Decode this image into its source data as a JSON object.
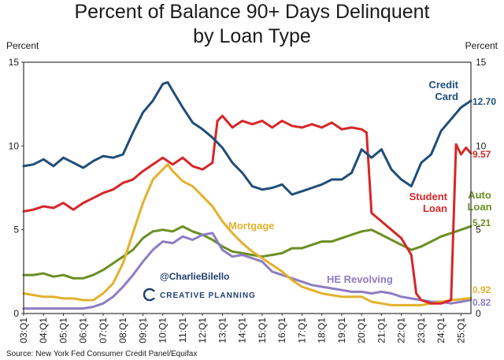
{
  "colors": {
    "credit_card": "#1f4e79",
    "student_loan": "#d62728",
    "auto_loan": "#6b8e23",
    "mortgage": "#e3b12c",
    "he_revolving": "#8e7cc3",
    "frame": "#333333"
  },
  "watermark": {
    "handle": "@CharlieBilello",
    "brand": "CREATIVE PLANNING"
  },
  "source": "Source: New York Fed Consumer Credit Panel/Equifax",
  "chart_data": {
    "type": "line",
    "title": "Percent of Balance 90+ Days Delinquent",
    "subtitle": "by Loan Type",
    "ylabel_left": "Percent",
    "ylabel_right": "Percent",
    "ylim": [
      0,
      15
    ],
    "yticks": [
      0,
      5,
      10,
      15
    ],
    "xlim": [
      2003.0,
      2025.5
    ],
    "xticks": [
      "03:Q1",
      "04:Q1",
      "05:Q1",
      "06:Q1",
      "07:Q1",
      "08:Q1",
      "09:Q1",
      "10:Q1",
      "11:Q1",
      "12:Q1",
      "13:Q1",
      "14:Q1",
      "15:Q1",
      "16:Q1",
      "17:Q1",
      "18:Q1",
      "19:Q1",
      "20:Q1",
      "21:Q1",
      "22:Q1",
      "23:Q1",
      "24:Q1",
      "25:Q1"
    ],
    "series": [
      {
        "key": "credit_card",
        "name": "Credit Card",
        "name_lines": [
          "Credit",
          "Card"
        ],
        "end_value": "12.70",
        "points": [
          [
            2003.0,
            8.8
          ],
          [
            2003.5,
            8.9
          ],
          [
            2004.0,
            9.2
          ],
          [
            2004.5,
            8.8
          ],
          [
            2005.0,
            9.3
          ],
          [
            2005.5,
            9.0
          ],
          [
            2006.0,
            8.7
          ],
          [
            2006.5,
            9.1
          ],
          [
            2007.0,
            9.4
          ],
          [
            2007.5,
            9.3
          ],
          [
            2008.0,
            9.5
          ],
          [
            2008.5,
            10.8
          ],
          [
            2009.0,
            12.0
          ],
          [
            2009.5,
            12.7
          ],
          [
            2010.0,
            13.7
          ],
          [
            2010.25,
            13.8
          ],
          [
            2010.5,
            13.3
          ],
          [
            2011.0,
            12.3
          ],
          [
            2011.5,
            11.4
          ],
          [
            2012.0,
            11.0
          ],
          [
            2012.5,
            10.5
          ],
          [
            2013.0,
            9.9
          ],
          [
            2013.5,
            9.0
          ],
          [
            2014.0,
            8.4
          ],
          [
            2014.5,
            7.6
          ],
          [
            2015.0,
            7.4
          ],
          [
            2015.5,
            7.5
          ],
          [
            2016.0,
            7.7
          ],
          [
            2016.5,
            7.1
          ],
          [
            2017.0,
            7.3
          ],
          [
            2017.5,
            7.5
          ],
          [
            2018.0,
            7.7
          ],
          [
            2018.5,
            8.0
          ],
          [
            2019.0,
            8.0
          ],
          [
            2019.5,
            8.4
          ],
          [
            2020.0,
            9.8
          ],
          [
            2020.5,
            9.3
          ],
          [
            2021.0,
            9.8
          ],
          [
            2021.5,
            8.6
          ],
          [
            2022.0,
            8.0
          ],
          [
            2022.5,
            7.6
          ],
          [
            2023.0,
            9.0
          ],
          [
            2023.5,
            9.5
          ],
          [
            2024.0,
            10.9
          ],
          [
            2024.5,
            11.6
          ],
          [
            2025.0,
            12.3
          ],
          [
            2025.5,
            12.7
          ]
        ]
      },
      {
        "key": "student_loan",
        "name": "Student Loan",
        "name_lines": [
          "Student",
          "Loan"
        ],
        "end_value": "9.57",
        "points": [
          [
            2003.0,
            6.1
          ],
          [
            2003.5,
            6.2
          ],
          [
            2004.0,
            6.4
          ],
          [
            2004.5,
            6.3
          ],
          [
            2005.0,
            6.6
          ],
          [
            2005.5,
            6.2
          ],
          [
            2006.0,
            6.6
          ],
          [
            2006.5,
            6.9
          ],
          [
            2007.0,
            7.2
          ],
          [
            2007.5,
            7.4
          ],
          [
            2008.0,
            7.8
          ],
          [
            2008.5,
            8.0
          ],
          [
            2009.0,
            8.5
          ],
          [
            2009.5,
            8.9
          ],
          [
            2010.0,
            9.3
          ],
          [
            2010.5,
            8.9
          ],
          [
            2011.0,
            9.3
          ],
          [
            2011.5,
            8.8
          ],
          [
            2012.0,
            8.6
          ],
          [
            2012.5,
            9.0
          ],
          [
            2012.75,
            11.5
          ],
          [
            2013.0,
            11.8
          ],
          [
            2013.5,
            11.1
          ],
          [
            2014.0,
            11.5
          ],
          [
            2014.5,
            11.3
          ],
          [
            2015.0,
            11.5
          ],
          [
            2015.5,
            11.1
          ],
          [
            2016.0,
            11.5
          ],
          [
            2016.5,
            11.2
          ],
          [
            2017.0,
            11.1
          ],
          [
            2017.5,
            11.3
          ],
          [
            2018.0,
            11.1
          ],
          [
            2018.5,
            11.4
          ],
          [
            2019.0,
            11.0
          ],
          [
            2019.5,
            11.1
          ],
          [
            2020.0,
            11.0
          ],
          [
            2020.25,
            10.8
          ],
          [
            2020.5,
            6.0
          ],
          [
            2021.0,
            5.5
          ],
          [
            2021.5,
            5.0
          ],
          [
            2022.0,
            4.5
          ],
          [
            2022.5,
            3.5
          ],
          [
            2022.75,
            1.2
          ],
          [
            2023.0,
            0.8
          ],
          [
            2023.5,
            0.6
          ],
          [
            2024.0,
            0.6
          ],
          [
            2024.5,
            0.8
          ],
          [
            2024.75,
            10.1
          ],
          [
            2025.0,
            9.5
          ],
          [
            2025.25,
            9.9
          ],
          [
            2025.5,
            9.57
          ]
        ]
      },
      {
        "key": "auto_loan",
        "name": "Auto Loan",
        "name_lines": [
          "Auto",
          "Loan"
        ],
        "end_value": "5.21",
        "points": [
          [
            2003.0,
            2.3
          ],
          [
            2003.5,
            2.3
          ],
          [
            2004.0,
            2.4
          ],
          [
            2004.5,
            2.2
          ],
          [
            2005.0,
            2.3
          ],
          [
            2005.5,
            2.1
          ],
          [
            2006.0,
            2.1
          ],
          [
            2006.5,
            2.3
          ],
          [
            2007.0,
            2.6
          ],
          [
            2007.5,
            3.0
          ],
          [
            2008.0,
            3.4
          ],
          [
            2008.5,
            3.8
          ],
          [
            2009.0,
            4.5
          ],
          [
            2009.5,
            4.9
          ],
          [
            2010.0,
            5.0
          ],
          [
            2010.5,
            4.9
          ],
          [
            2011.0,
            5.2
          ],
          [
            2011.5,
            4.9
          ],
          [
            2012.0,
            4.7
          ],
          [
            2012.5,
            4.4
          ],
          [
            2013.0,
            4.0
          ],
          [
            2013.5,
            3.7
          ],
          [
            2014.0,
            3.6
          ],
          [
            2014.5,
            3.5
          ],
          [
            2015.0,
            3.4
          ],
          [
            2015.5,
            3.5
          ],
          [
            2016.0,
            3.6
          ],
          [
            2016.5,
            3.9
          ],
          [
            2017.0,
            3.9
          ],
          [
            2017.5,
            4.1
          ],
          [
            2018.0,
            4.3
          ],
          [
            2018.5,
            4.3
          ],
          [
            2019.0,
            4.5
          ],
          [
            2019.5,
            4.7
          ],
          [
            2020.0,
            4.9
          ],
          [
            2020.5,
            5.0
          ],
          [
            2021.0,
            4.7
          ],
          [
            2021.5,
            4.4
          ],
          [
            2022.0,
            4.1
          ],
          [
            2022.5,
            3.8
          ],
          [
            2023.0,
            4.0
          ],
          [
            2023.5,
            4.3
          ],
          [
            2024.0,
            4.6
          ],
          [
            2024.5,
            4.8
          ],
          [
            2025.0,
            5.0
          ],
          [
            2025.5,
            5.21
          ]
        ]
      },
      {
        "key": "mortgage",
        "name": "Mortgage",
        "name_lines": [
          "Mortgage"
        ],
        "end_value": "0.92",
        "points": [
          [
            2003.0,
            1.2
          ],
          [
            2003.5,
            1.1
          ],
          [
            2004.0,
            1.0
          ],
          [
            2004.5,
            1.0
          ],
          [
            2005.0,
            0.9
          ],
          [
            2005.5,
            0.9
          ],
          [
            2006.0,
            0.8
          ],
          [
            2006.5,
            0.8
          ],
          [
            2007.0,
            1.2
          ],
          [
            2007.5,
            1.8
          ],
          [
            2008.0,
            3.0
          ],
          [
            2008.5,
            4.8
          ],
          [
            2009.0,
            6.6
          ],
          [
            2009.5,
            8.0
          ],
          [
            2010.0,
            8.6
          ],
          [
            2010.25,
            8.9
          ],
          [
            2010.5,
            8.5
          ],
          [
            2011.0,
            7.9
          ],
          [
            2011.5,
            7.6
          ],
          [
            2012.0,
            7.0
          ],
          [
            2012.5,
            6.4
          ],
          [
            2013.0,
            5.5
          ],
          [
            2013.5,
            4.8
          ],
          [
            2014.0,
            4.2
          ],
          [
            2014.5,
            3.7
          ],
          [
            2015.0,
            3.3
          ],
          [
            2015.5,
            2.9
          ],
          [
            2016.0,
            2.5
          ],
          [
            2016.5,
            2.0
          ],
          [
            2017.0,
            1.6
          ],
          [
            2017.5,
            1.4
          ],
          [
            2018.0,
            1.2
          ],
          [
            2018.5,
            1.1
          ],
          [
            2019.0,
            1.0
          ],
          [
            2019.5,
            1.0
          ],
          [
            2020.0,
            1.0
          ],
          [
            2020.5,
            0.7
          ],
          [
            2021.0,
            0.6
          ],
          [
            2021.5,
            0.5
          ],
          [
            2022.0,
            0.5
          ],
          [
            2022.5,
            0.5
          ],
          [
            2023.0,
            0.5
          ],
          [
            2023.5,
            0.6
          ],
          [
            2024.0,
            0.7
          ],
          [
            2024.5,
            0.8
          ],
          [
            2025.0,
            0.85
          ],
          [
            2025.5,
            0.92
          ]
        ]
      },
      {
        "key": "he_revolving",
        "name": "HE Revolving",
        "name_lines": [
          "HE Revolving"
        ],
        "end_value": "0.82",
        "points": [
          [
            2003.0,
            0.3
          ],
          [
            2003.5,
            0.3
          ],
          [
            2004.0,
            0.3
          ],
          [
            2004.5,
            0.3
          ],
          [
            2005.0,
            0.3
          ],
          [
            2005.5,
            0.3
          ],
          [
            2006.0,
            0.3
          ],
          [
            2006.5,
            0.4
          ],
          [
            2007.0,
            0.6
          ],
          [
            2007.5,
            1.0
          ],
          [
            2008.0,
            1.6
          ],
          [
            2008.5,
            2.3
          ],
          [
            2009.0,
            3.1
          ],
          [
            2009.5,
            3.8
          ],
          [
            2010.0,
            4.3
          ],
          [
            2010.5,
            4.2
          ],
          [
            2011.0,
            4.6
          ],
          [
            2011.5,
            4.4
          ],
          [
            2012.0,
            4.7
          ],
          [
            2012.5,
            4.8
          ],
          [
            2013.0,
            3.8
          ],
          [
            2013.5,
            3.4
          ],
          [
            2014.0,
            3.5
          ],
          [
            2014.5,
            3.3
          ],
          [
            2015.0,
            3.1
          ],
          [
            2015.5,
            2.5
          ],
          [
            2016.0,
            2.3
          ],
          [
            2016.5,
            2.1
          ],
          [
            2017.0,
            1.9
          ],
          [
            2017.5,
            1.7
          ],
          [
            2018.0,
            1.6
          ],
          [
            2018.5,
            1.5
          ],
          [
            2019.0,
            1.4
          ],
          [
            2019.5,
            1.3
          ],
          [
            2020.0,
            1.3
          ],
          [
            2020.5,
            1.2
          ],
          [
            2021.0,
            1.3
          ],
          [
            2021.5,
            1.2
          ],
          [
            2022.0,
            1.0
          ],
          [
            2022.5,
            0.9
          ],
          [
            2023.0,
            0.8
          ],
          [
            2023.5,
            0.7
          ],
          [
            2024.0,
            0.7
          ],
          [
            2024.5,
            0.6
          ],
          [
            2025.0,
            0.7
          ],
          [
            2025.5,
            0.82
          ]
        ]
      }
    ]
  }
}
